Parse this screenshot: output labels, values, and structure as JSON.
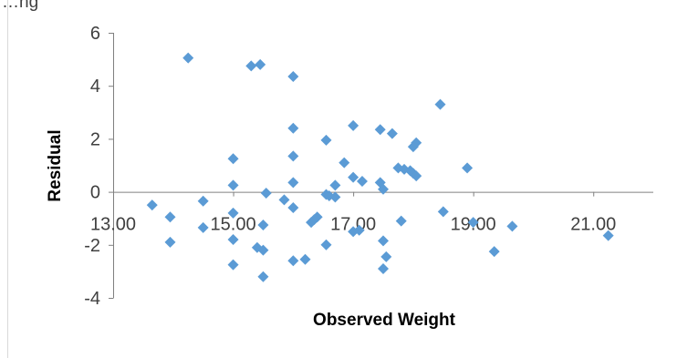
{
  "chart_data": {
    "type": "scatter",
    "title": "…ng",
    "xlabel": "Observed Weight",
    "ylabel": "Residual",
    "xlim": [
      13.0,
      22.0
    ],
    "ylim": [
      -4,
      6
    ],
    "x_ticks": [
      13.0,
      15.0,
      17.0,
      19.0,
      21.0
    ],
    "x_tick_labels": [
      "13.00",
      "15.00",
      "17.00",
      "19.00",
      "21.00"
    ],
    "y_ticks": [
      -4,
      -2,
      0,
      2,
      4,
      6
    ],
    "y_tick_labels": [
      "-4",
      "-2",
      "0",
      "2",
      "4",
      "6"
    ],
    "x_axis_crosses_at_y": 0,
    "grid": false,
    "legend": "none",
    "marker": "diamond",
    "marker_color": "#5b9bd5",
    "points": [
      {
        "x": 13.65,
        "y": -0.5
      },
      {
        "x": 13.95,
        "y": -0.95
      },
      {
        "x": 13.95,
        "y": -1.9
      },
      {
        "x": 14.25,
        "y": 5.05
      },
      {
        "x": 14.5,
        "y": -0.35
      },
      {
        "x": 14.5,
        "y": -1.35
      },
      {
        "x": 15.0,
        "y": 1.25
      },
      {
        "x": 15.0,
        "y": 0.25
      },
      {
        "x": 15.0,
        "y": -0.8
      },
      {
        "x": 15.0,
        "y": -1.8
      },
      {
        "x": 15.0,
        "y": -2.75
      },
      {
        "x": 15.3,
        "y": 4.75
      },
      {
        "x": 15.4,
        "y": -2.1
      },
      {
        "x": 15.45,
        "y": 4.8
      },
      {
        "x": 15.5,
        "y": -1.25
      },
      {
        "x": 15.5,
        "y": -2.2
      },
      {
        "x": 15.5,
        "y": -3.2
      },
      {
        "x": 15.55,
        "y": -0.05
      },
      {
        "x": 15.85,
        "y": -0.3
      },
      {
        "x": 16.0,
        "y": 4.35
      },
      {
        "x": 16.0,
        "y": 2.4
      },
      {
        "x": 16.0,
        "y": 1.35
      },
      {
        "x": 16.0,
        "y": 0.35
      },
      {
        "x": 16.0,
        "y": -0.6
      },
      {
        "x": 16.0,
        "y": -2.6
      },
      {
        "x": 16.2,
        "y": -2.55
      },
      {
        "x": 16.3,
        "y": -1.15
      },
      {
        "x": 16.35,
        "y": -1.05
      },
      {
        "x": 16.4,
        "y": -0.95
      },
      {
        "x": 16.55,
        "y": 1.95
      },
      {
        "x": 16.55,
        "y": -0.1
      },
      {
        "x": 16.55,
        "y": -2.0
      },
      {
        "x": 16.6,
        "y": -0.15
      },
      {
        "x": 16.7,
        "y": -0.2
      },
      {
        "x": 16.7,
        "y": 0.25
      },
      {
        "x": 16.85,
        "y": 1.1
      },
      {
        "x": 17.0,
        "y": 2.5
      },
      {
        "x": 17.0,
        "y": 0.55
      },
      {
        "x": 17.0,
        "y": -1.5
      },
      {
        "x": 17.1,
        "y": -1.45
      },
      {
        "x": 17.15,
        "y": 0.4
      },
      {
        "x": 17.45,
        "y": 2.35
      },
      {
        "x": 17.45,
        "y": 0.35
      },
      {
        "x": 17.5,
        "y": 0.1
      },
      {
        "x": 17.5,
        "y": -1.85
      },
      {
        "x": 17.5,
        "y": -2.9
      },
      {
        "x": 17.55,
        "y": -2.45
      },
      {
        "x": 17.65,
        "y": 2.2
      },
      {
        "x": 17.75,
        "y": 0.9
      },
      {
        "x": 17.8,
        "y": -1.1
      },
      {
        "x": 17.85,
        "y": 0.85
      },
      {
        "x": 17.95,
        "y": 0.8
      },
      {
        "x": 18.0,
        "y": 0.7
      },
      {
        "x": 18.0,
        "y": 1.7
      },
      {
        "x": 18.05,
        "y": 1.85
      },
      {
        "x": 18.05,
        "y": 0.6
      },
      {
        "x": 18.45,
        "y": 3.3
      },
      {
        "x": 18.5,
        "y": -0.75
      },
      {
        "x": 18.9,
        "y": 0.9
      },
      {
        "x": 19.0,
        "y": -1.15
      },
      {
        "x": 19.35,
        "y": -2.25
      },
      {
        "x": 19.65,
        "y": -1.3
      },
      {
        "x": 21.25,
        "y": -1.65
      }
    ]
  }
}
